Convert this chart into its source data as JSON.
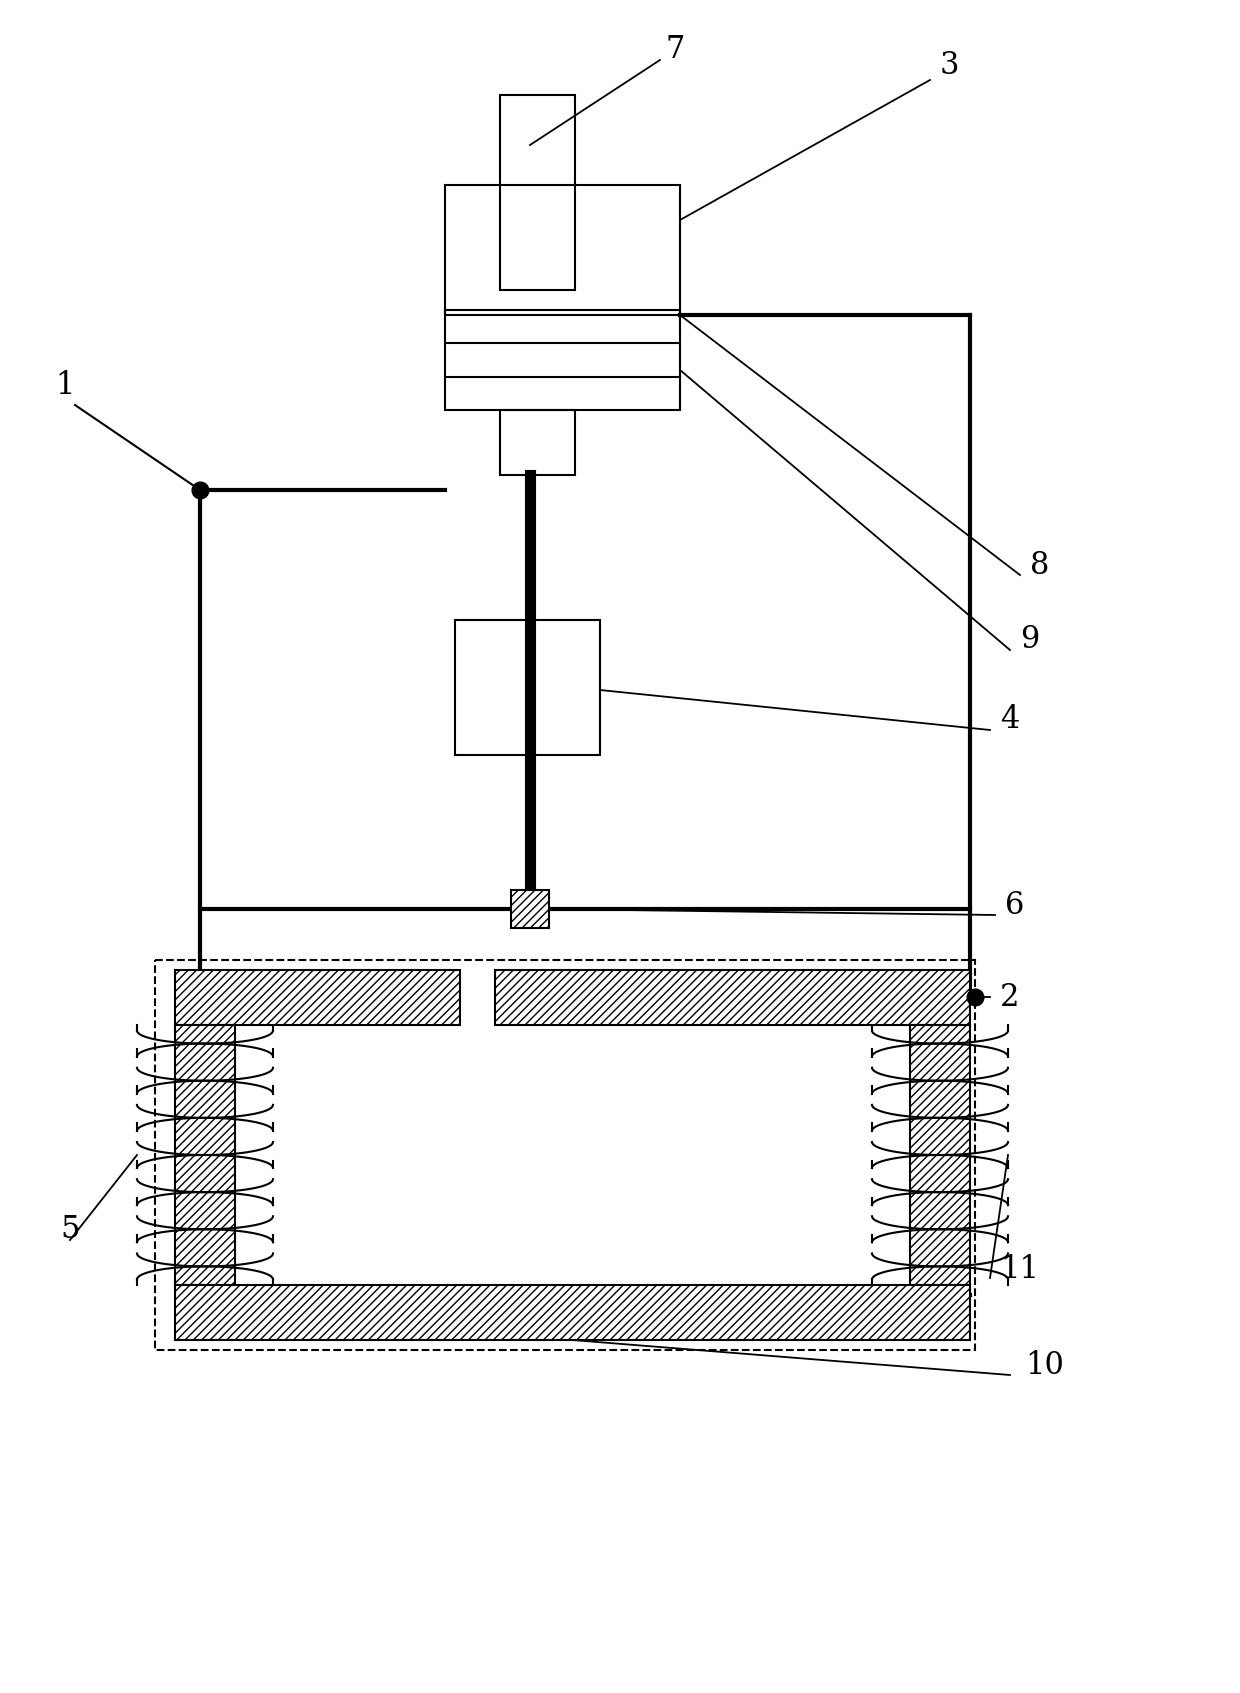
{
  "fig_width": 12.4,
  "fig_height": 16.93,
  "dpi": 100,
  "bg_color": "#ffffff",
  "line_color": "#000000",
  "thick_lw": 3.0,
  "thin_lw": 1.5,
  "label_fontsize": 22
}
